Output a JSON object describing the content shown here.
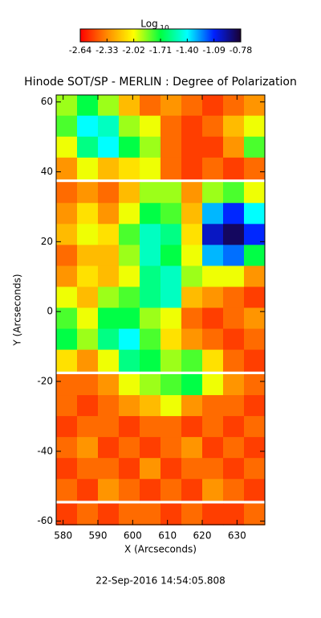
{
  "chart_data": {
    "type": "heatmap",
    "title": "Hinode SOT/SP - MERLIN : Degree of Polarization",
    "xlabel": "X (Arcseconds)",
    "ylabel": "Y (Arcseconds)",
    "footer": "22-Sep-2016 14:54:05.808",
    "colorbar": {
      "label": "Log",
      "label_sub": "10",
      "clim": [
        -2.64,
        -0.78
      ],
      "ticks": [
        -2.64,
        -2.33,
        -2.02,
        -1.71,
        {
          "value": -1.4,
          "label": "-1.40"
        },
        -1.09,
        -0.78
      ]
    },
    "colormap": [
      "#ff0000",
      "#ff8a00",
      "#ffff00",
      "#00ff40",
      "#00ffff",
      "#0020ff",
      "#1a0030"
    ],
    "xlim": [
      578,
      638
    ],
    "ylim": [
      -61,
      62
    ],
    "xticks": [
      580,
      590,
      600,
      610,
      620,
      630
    ],
    "yticks": [
      -60,
      -40,
      -20,
      0,
      20,
      40,
      60
    ],
    "x": [
      581,
      587,
      593,
      599,
      605,
      611,
      617,
      623,
      629,
      635
    ],
    "y": [
      59,
      53,
      47,
      41,
      34,
      28,
      22,
      16,
      10,
      4,
      -2,
      -8,
      -14,
      -21,
      -27,
      -33,
      -39,
      -45,
      -51,
      -58
    ],
    "z": [
      [
        -1.9,
        -1.7,
        -1.9,
        -2.2,
        -2.4,
        -2.3,
        -2.4,
        -2.5,
        -2.4,
        -2.3
      ],
      [
        -1.8,
        -1.4,
        -1.5,
        -1.9,
        -2.0,
        -2.4,
        -2.5,
        -2.4,
        -2.2,
        -2.0
      ],
      [
        -2.0,
        -1.6,
        -1.4,
        -1.7,
        -1.9,
        -2.4,
        -2.5,
        -2.5,
        -2.3,
        -1.8
      ],
      [
        -2.3,
        -2.0,
        -2.2,
        -2.1,
        -2.0,
        -2.4,
        -2.5,
        -2.4,
        -2.5,
        -2.4
      ],
      [
        -2.4,
        -2.3,
        -2.4,
        -2.2,
        -1.9,
        -1.9,
        -2.3,
        -1.9,
        -1.8,
        -2.0
      ],
      [
        -2.3,
        -2.1,
        -2.3,
        -2.0,
        -1.7,
        -1.8,
        -2.2,
        -1.3,
        -1.1,
        -1.4
      ],
      [
        -2.2,
        -2.0,
        -2.1,
        -1.8,
        -1.5,
        -1.6,
        -2.1,
        -1.0,
        -0.85,
        -1.1
      ],
      [
        -2.4,
        -2.2,
        -2.2,
        -1.9,
        -1.5,
        -1.7,
        -2.0,
        -1.3,
        -1.2,
        -1.7
      ],
      [
        -2.3,
        -2.1,
        -2.2,
        -2.0,
        -1.6,
        -1.5,
        -1.9,
        -2.0,
        -2.0,
        -2.3
      ],
      [
        -2.0,
        -2.2,
        -1.9,
        -1.8,
        -1.6,
        -1.5,
        -2.2,
        -2.3,
        -2.4,
        -2.5
      ],
      [
        -1.8,
        -2.0,
        -1.7,
        -1.7,
        -1.9,
        -2.0,
        -2.4,
        -2.5,
        -2.4,
        -2.3
      ],
      [
        -1.7,
        -1.9,
        -1.6,
        -1.4,
        -1.8,
        -2.1,
        -2.3,
        -2.4,
        -2.5,
        -2.4
      ],
      [
        -2.1,
        -2.3,
        -2.0,
        -1.6,
        -1.7,
        -1.9,
        -1.8,
        -2.1,
        -2.4,
        -2.5
      ],
      [
        -2.4,
        -2.4,
        -2.3,
        -2.0,
        -1.9,
        -1.8,
        -1.7,
        -2.0,
        -2.3,
        -2.4
      ],
      [
        -2.4,
        -2.5,
        -2.4,
        -2.3,
        -2.2,
        -2.0,
        -2.3,
        -2.4,
        -2.4,
        -2.5
      ],
      [
        -2.5,
        -2.4,
        -2.4,
        -2.5,
        -2.4,
        -2.4,
        -2.5,
        -2.4,
        -2.5,
        -2.4
      ],
      [
        -2.4,
        -2.3,
        -2.5,
        -2.4,
        -2.5,
        -2.4,
        -2.3,
        -2.5,
        -2.4,
        -2.5
      ],
      [
        -2.5,
        -2.4,
        -2.4,
        -2.5,
        -2.3,
        -2.5,
        -2.4,
        -2.4,
        -2.5,
        -2.4
      ],
      [
        -2.4,
        -2.5,
        -2.3,
        -2.4,
        -2.5,
        -2.4,
        -2.5,
        -2.3,
        -2.4,
        -2.5
      ],
      [
        -2.5,
        -2.4,
        -2.5,
        -2.4,
        -2.4,
        -2.5,
        -2.4,
        -2.5,
        -2.5,
        -2.4
      ]
    ]
  }
}
